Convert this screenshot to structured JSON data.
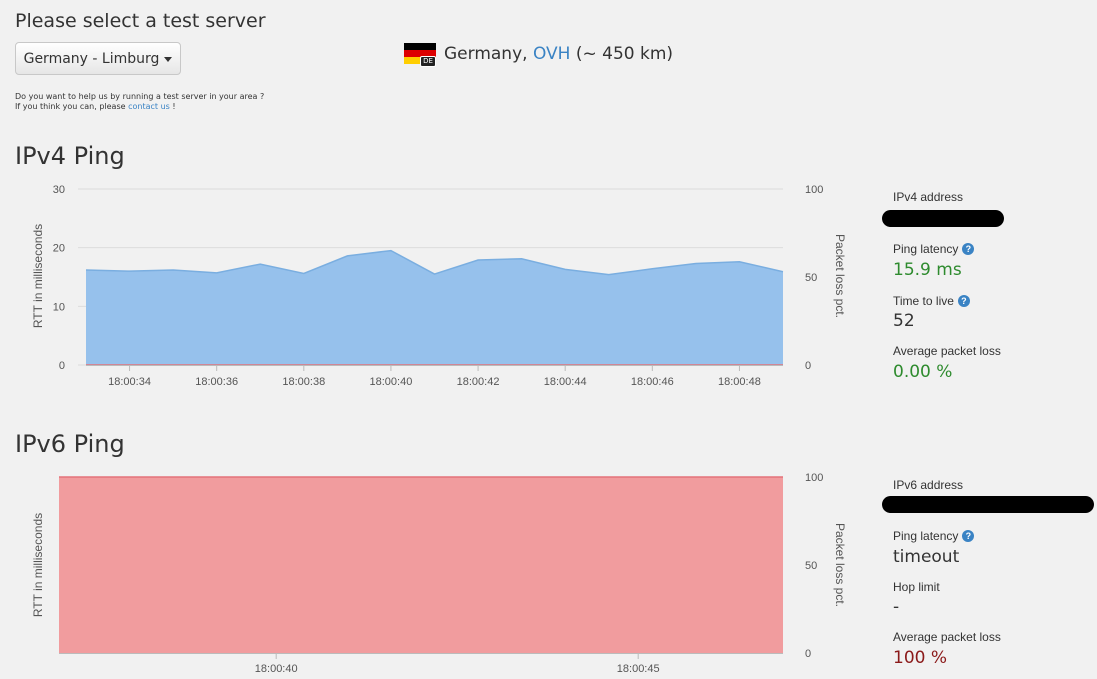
{
  "header": {
    "title": "Please select a test server",
    "server_select_label": "Germany - Limburg",
    "flag_code": "DE",
    "location_prefix": "Germany, ",
    "provider": "OVH",
    "distance": " (~ 450 km)",
    "help_line1": "Do you want to help us by running a test server in your area ?",
    "help_line2_prefix": "If you think you can, please ",
    "help_link": "contact us",
    "help_line2_suffix": " !"
  },
  "colors": {
    "ipv4_fill": "#96c1ec",
    "ipv4_line": "#7aaee0",
    "ipv6_fill": "#f19c9e",
    "ipv6_line": "#e4737a",
    "accent": "#3a83c4",
    "good": "#2e8b2e",
    "bad": "#8b1a1a"
  },
  "ipv4": {
    "title": "IPv4 Ping",
    "y_label_left": "RTT in milliseconds",
    "y_label_right": "Packet loss pct.",
    "stats": {
      "address_label": "IPv4 address",
      "latency_label": "Ping latency",
      "latency_value": "15.9 ms",
      "ttl_label": "Time to live",
      "ttl_value": "52",
      "loss_label": "Average packet loss",
      "loss_value": "0.00 %"
    }
  },
  "ipv6": {
    "title": "IPv6 Ping",
    "y_label_left": "RTT in milliseconds",
    "y_label_right": "Packet loss pct.",
    "stats": {
      "address_label": "IPv6 address",
      "latency_label": "Ping latency",
      "latency_value": "timeout",
      "hop_label": "Hop limit",
      "hop_value": "-",
      "loss_label": "Average packet loss",
      "loss_value": "100 %"
    }
  },
  "chart_data": [
    {
      "type": "area",
      "title": "IPv4 Ping",
      "ylabel": "RTT in milliseconds",
      "ylabel_right": "Packet loss pct.",
      "ylim": [
        0,
        30
      ],
      "ylim_right": [
        0,
        100
      ],
      "yticks": [
        "0",
        "10",
        "20",
        "30"
      ],
      "yticks_right": [
        "0",
        "50",
        "100"
      ],
      "xlim": [
        "18:00:33",
        "18:00:49"
      ],
      "xticks": [
        "18:00:34",
        "18:00:36",
        "18:00:38",
        "18:00:40",
        "18:00:42",
        "18:00:44",
        "18:00:46",
        "18:00:48"
      ],
      "grid": true,
      "series": [
        {
          "axis": "left",
          "x": [
            "18:00:33",
            "18:00:34",
            "18:00:35",
            "18:00:36",
            "18:00:37",
            "18:00:38",
            "18:00:39",
            "18:00:40",
            "18:00:41",
            "18:00:42",
            "18:00:43",
            "18:00:44",
            "18:00:45",
            "18:00:46",
            "18:00:47",
            "18:00:48",
            "18:00:49"
          ],
          "values": [
            16.2,
            16.0,
            16.2,
            15.7,
            17.2,
            15.6,
            18.6,
            19.5,
            15.5,
            17.9,
            18.1,
            16.3,
            15.4,
            16.4,
            17.3,
            17.6,
            15.9
          ]
        },
        {
          "axis": "right",
          "x": [
            "18:00:33",
            "18:00:49"
          ],
          "values": [
            0,
            0
          ]
        }
      ]
    },
    {
      "type": "area",
      "title": "IPv6 Ping",
      "ylabel": "RTT in milliseconds",
      "ylabel_right": "Packet loss pct.",
      "ylim_right": [
        0,
        100
      ],
      "yticks_right": [
        "0",
        "50",
        "100"
      ],
      "xlim": [
        "18:00:37",
        "18:00:47"
      ],
      "xticks": [
        "18:00:40",
        "18:00:45"
      ],
      "grid": false,
      "series": [
        {
          "axis": "right",
          "x": [
            "18:00:37",
            "18:00:47"
          ],
          "values": [
            100,
            100
          ]
        }
      ]
    }
  ]
}
